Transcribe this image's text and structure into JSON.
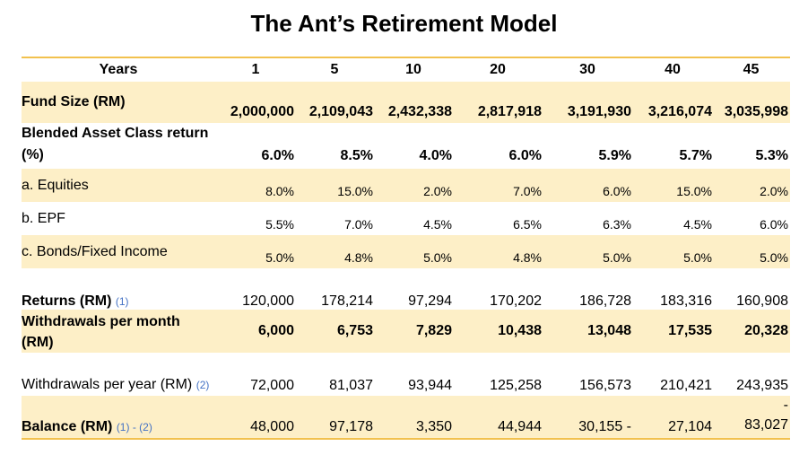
{
  "title": "The Ant’s Retirement Model",
  "header": {
    "label": "Years",
    "cols": [
      "1",
      "5",
      "10",
      "20",
      "30",
      "40",
      "45"
    ]
  },
  "rows": {
    "fund": {
      "label": "Fund Size (RM)",
      "values": [
        "2,000,000",
        "2,109,043",
        "2,432,338",
        "2,817,918",
        "3,191,930",
        "3,216,074",
        "3,035,998"
      ]
    },
    "blended": {
      "label": "Blended Asset Class return (%)",
      "values": [
        "6.0%",
        "8.5%",
        "4.0%",
        "6.0%",
        "5.9%",
        "5.7%",
        "5.3%"
      ]
    },
    "equities": {
      "label": "a. Equities",
      "values": [
        "8.0%",
        "15.0%",
        "2.0%",
        "7.0%",
        "6.0%",
        "15.0%",
        "2.0%"
      ]
    },
    "epf": {
      "label": "b. EPF",
      "values": [
        "5.5%",
        "7.0%",
        "4.5%",
        "6.5%",
        "6.3%",
        "4.5%",
        "6.0%"
      ]
    },
    "bonds": {
      "label": "c. Bonds/Fixed Income",
      "values": [
        "5.0%",
        "4.8%",
        "5.0%",
        "4.8%",
        "5.0%",
        "5.0%",
        "5.0%"
      ]
    },
    "returns": {
      "label": "Returns (RM)",
      "note": "(1)",
      "values": [
        "120,000",
        "178,214",
        "97,294",
        "170,202",
        "186,728",
        "183,316",
        "160,908"
      ]
    },
    "wmonth": {
      "label": "Withdrawals per month (RM)",
      "values": [
        "6,000",
        "6,753",
        "7,829",
        "10,438",
        "13,048",
        "17,535",
        "20,328"
      ]
    },
    "wyear": {
      "label": "Withdrawals per year (RM)",
      "note": "(2)",
      "values": [
        "72,000",
        "81,037",
        "93,944",
        "125,258",
        "156,573",
        "210,421",
        "243,935"
      ]
    },
    "balance": {
      "label": "Balance (RM)",
      "note": "(1) - (2)",
      "values": [
        "48,000",
        "97,178",
        "3,350",
        "44,944",
        "30,155 -",
        "27,104",
        "83,027"
      ],
      "prefix_last": "-"
    }
  }
}
